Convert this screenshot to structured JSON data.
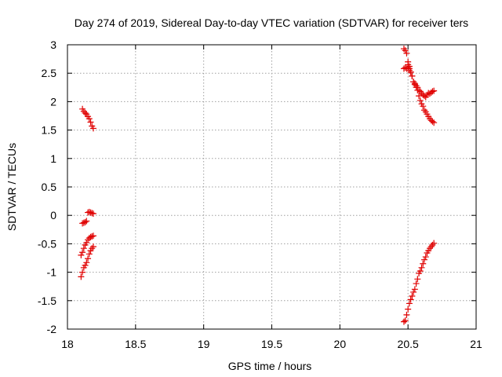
{
  "chart_data": {
    "type": "scatter",
    "title": "Day 274 of 2019, Sidereal Day-to-day VTEC variation (SDTVAR) for receiver ters",
    "xlabel": "GPS time / hours",
    "ylabel": "SDTVAR / TECUs",
    "xlim": [
      18,
      21
    ],
    "ylim": [
      -2,
      3
    ],
    "xticks": [
      "18",
      "18.5",
      "19",
      "19.5",
      "20",
      "20.5",
      "21"
    ],
    "yticks": [
      "-2",
      "-1.5",
      "-1",
      "-0.5",
      "0",
      "0.5",
      "1",
      "1.5",
      "2",
      "2.5",
      "3"
    ],
    "grid": true,
    "marker": "plus",
    "color": "#e00000",
    "series": [
      {
        "x": [
          18.11,
          18.12,
          18.13,
          18.14,
          18.15,
          18.16,
          18.17,
          18.18,
          18.19,
          18.11,
          18.12,
          18.13,
          18.14,
          18.15,
          18.16,
          18.17,
          18.18,
          18.19,
          18.1,
          18.11,
          18.12,
          18.13,
          18.14,
          18.15,
          18.16,
          18.17,
          18.18,
          18.19,
          18.1,
          18.11,
          18.12,
          18.13,
          18.14,
          18.15,
          18.16,
          18.17,
          18.18,
          18.19,
          20.47,
          20.48,
          20.49,
          20.5,
          20.5,
          20.51,
          20.51,
          20.52,
          20.53,
          20.54,
          20.55,
          20.56,
          20.57,
          20.58,
          20.59,
          20.6,
          20.61,
          20.62,
          20.63,
          20.64,
          20.65,
          20.66,
          20.67,
          20.68,
          20.69,
          20.47,
          20.48,
          20.49,
          20.5,
          20.51,
          20.52,
          20.53,
          20.54,
          20.55,
          20.56,
          20.57,
          20.58,
          20.59,
          20.6,
          20.61,
          20.62,
          20.63,
          20.64,
          20.65,
          20.66,
          20.67,
          20.68,
          20.69,
          20.47,
          20.48,
          20.49,
          20.5,
          20.51,
          20.52,
          20.53,
          20.54,
          20.55,
          20.56,
          20.57,
          20.58,
          20.59,
          20.6,
          20.61,
          20.62,
          20.63,
          20.64,
          20.65,
          20.66,
          20.67,
          20.68,
          20.69
        ],
        "y": [
          1.87,
          1.83,
          1.8,
          1.78,
          1.74,
          1.7,
          1.64,
          1.57,
          1.53,
          -0.14,
          -0.13,
          -0.12,
          -0.1,
          0.05,
          0.06,
          0.05,
          0.04,
          0.03,
          -0.7,
          -0.65,
          -0.58,
          -0.52,
          -0.48,
          -0.43,
          -0.4,
          -0.38,
          -0.37,
          -0.36,
          -1.08,
          -1.0,
          -0.92,
          -0.88,
          -0.83,
          -0.76,
          -0.68,
          -0.62,
          -0.58,
          -0.55,
          2.93,
          2.9,
          2.85,
          2.7,
          2.65,
          2.62,
          2.58,
          2.52,
          2.45,
          2.35,
          2.3,
          2.25,
          2.2,
          2.1,
          2.02,
          1.96,
          1.92,
          1.85,
          1.82,
          1.78,
          1.74,
          1.7,
          1.67,
          1.65,
          1.63,
          2.58,
          2.6,
          2.58,
          2.6,
          2.55,
          2.52,
          2.45,
          2.35,
          2.32,
          2.28,
          2.25,
          2.2,
          2.18,
          2.15,
          2.12,
          2.1,
          2.08,
          2.12,
          2.15,
          2.14,
          2.16,
          2.18,
          2.19,
          -1.87,
          -1.85,
          -1.75,
          -1.65,
          -1.55,
          -1.48,
          -1.42,
          -1.35,
          -1.3,
          -1.2,
          -1.12,
          -1.02,
          -0.98,
          -0.92,
          -0.85,
          -0.78,
          -0.73,
          -0.66,
          -0.62,
          -0.58,
          -0.55,
          -0.52,
          -0.49
        ]
      }
    ]
  }
}
